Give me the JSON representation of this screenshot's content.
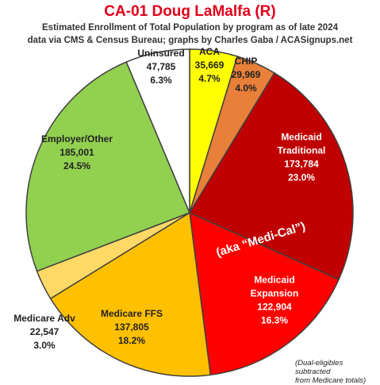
{
  "chart_data": {
    "type": "pie",
    "title": "CA-01 Doug LaMalfa (R)",
    "subtitle_lines": [
      "Estimated Enrollment of Total Population by program as of late 2024",
      "data via CMS & Census Bureau; graphs by Charles Gaba / ACASignups.net"
    ],
    "slices": [
      {
        "label": "ACA",
        "value": 35669,
        "value_text": "35,669",
        "pct_text": "4.7%",
        "color": "#ffff00",
        "text_color": "#222222"
      },
      {
        "label": "CHIP",
        "value": 29969,
        "value_text": "29,969",
        "pct_text": "4.0%",
        "color": "#e8803a",
        "text_color": "#222222"
      },
      {
        "label": "Medicaid Traditional",
        "label_lines": [
          "Medicaid",
          "Traditional"
        ],
        "value": 173784,
        "value_text": "173,784",
        "pct_text": "23.0%",
        "color": "#c00000",
        "text_color": "#ffffff"
      },
      {
        "label": "Medicaid Expansion",
        "label_lines": [
          "Medicaid",
          "Expansion"
        ],
        "value": 122904,
        "value_text": "122,904",
        "pct_text": "16.3%",
        "color": "#ff0000",
        "text_color": "#ffffff"
      },
      {
        "label": "Medicare FFS",
        "value": 137805,
        "value_text": "137,805",
        "pct_text": "18.2%",
        "color": "#ffc000",
        "text_color": "#222222"
      },
      {
        "label": "Medicare Adv",
        "value": 22547,
        "value_text": "22,547",
        "pct_text": "3.0%",
        "color": "#ffd966",
        "text_color": "#222222"
      },
      {
        "label": "Employer/Other",
        "value": 185001,
        "value_text": "185,001",
        "pct_text": "24.5%",
        "color": "#92d050",
        "text_color": "#222222"
      },
      {
        "label": "Uninsured",
        "value": 47785,
        "value_text": "47,785",
        "pct_text": "6.3%",
        "color": "#ffffff",
        "text_color": "#222222"
      }
    ],
    "annotation": "(aka “Medi-Cal”)",
    "footnote_lines": [
      "(Dual-eligibles subtracted",
      "from Medicare totals)"
    ]
  }
}
